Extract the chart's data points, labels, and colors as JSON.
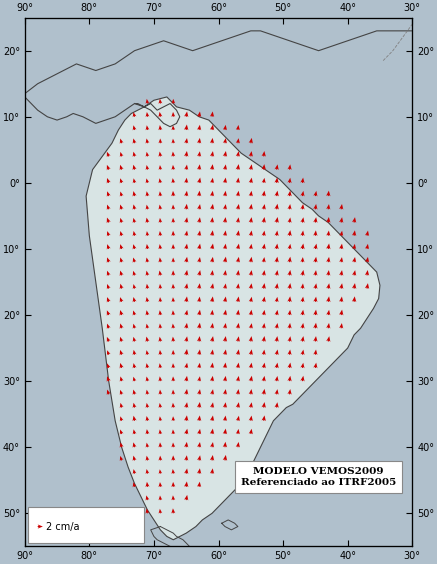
{
  "xlim": [
    -90,
    -30
  ],
  "ylim": [
    -55,
    25
  ],
  "xticks": [
    -90,
    -80,
    -70,
    -60,
    -50,
    -40,
    -30
  ],
  "yticks": [
    -50,
    -40,
    -30,
    -20,
    -10,
    0,
    10,
    20
  ],
  "background_color": "#b0c0cc",
  "land_color": "#d8e4e4",
  "border_color": "#444444",
  "vector_color": "#cc0000",
  "title_box_text1": "MODELO VEMOS2009",
  "title_box_text2": "Referenciado ao ITRF2005",
  "legend_text": "2 cm/a",
  "figsize": [
    4.37,
    5.64
  ],
  "dpi": 100
}
